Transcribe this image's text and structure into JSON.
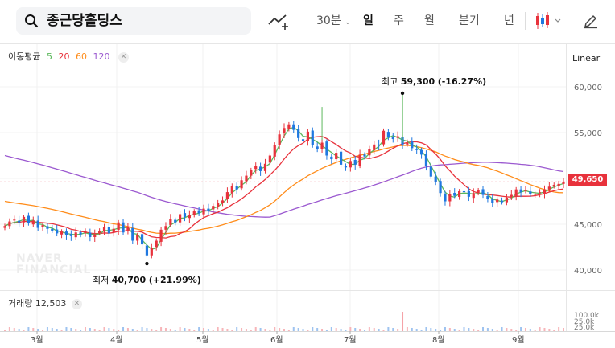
{
  "header": {
    "stock_name": "종근당홀딩스",
    "interval": "30분",
    "periods": [
      "일",
      "주",
      "월",
      "분기",
      "년"
    ],
    "active_period": "일"
  },
  "legend": {
    "title": "이동평균",
    "ma": [
      {
        "label": "5",
        "color": "#5cb85c"
      },
      {
        "label": "20",
        "color": "#e8323c"
      },
      {
        "label": "60",
        "color": "#ff8c1a"
      },
      {
        "label": "120",
        "color": "#9b59d0"
      }
    ]
  },
  "scale_label": "Linear",
  "volume_legend": {
    "title": "거래량",
    "value": "12,503"
  },
  "watermark": [
    "NAVER",
    "FINANCIAL"
  ],
  "annotations": {
    "high": {
      "label": "최고",
      "value": "59,300",
      "change": "(-16.27%)"
    },
    "low": {
      "label": "최저",
      "value": "40,700",
      "change": "(+21.99%)"
    }
  },
  "current_price": "49,650",
  "colors": {
    "up": "#e8323c",
    "down": "#1f78e0"
  },
  "chart_data": {
    "type": "candlestick",
    "y_ticks": [
      "60,000",
      "55,000",
      "50,000",
      "45,000",
      "40,000"
    ],
    "y_tick_values": [
      60000,
      55000,
      50000,
      45000,
      40000
    ],
    "ylim": [
      38000,
      62000
    ],
    "x_ticks": [
      "3월",
      "4월",
      "5월",
      "6월",
      "7월",
      "8월",
      "9월"
    ],
    "volume_ticks": [
      "100.0k",
      "25.0k",
      "25.0k"
    ],
    "closes": [
      44800,
      45300,
      45500,
      45200,
      45800,
      45100,
      45400,
      44600,
      44900,
      44500,
      44300,
      44000,
      44200,
      43800,
      43700,
      44100,
      43900,
      44200,
      43600,
      43900,
      44300,
      44700,
      44000,
      44500,
      45200,
      44100,
      44700,
      43200,
      43800,
      42800,
      41600,
      42400,
      43200,
      44400,
      44800,
      45600,
      45200,
      46100,
      45800,
      46000,
      46400,
      46200,
      46700,
      46500,
      47000,
      47300,
      47600,
      48500,
      49200,
      48800,
      49800,
      50300,
      50900,
      51400,
      50800,
      51600,
      52500,
      53600,
      54800,
      55500,
      55900,
      55300,
      54400,
      54100,
      55100,
      53600,
      53200,
      53900,
      52500,
      52100,
      52800,
      51500,
      51200,
      51900,
      51500,
      52600,
      52400,
      53200,
      53700,
      53600,
      55200,
      54500,
      54300,
      54600,
      53700,
      53900,
      53300,
      53100,
      52600,
      51400,
      50200,
      49600,
      48400,
      47500,
      48300,
      48100,
      48600,
      48500,
      48000,
      48400,
      48700,
      48200,
      47800,
      47300,
      47700,
      47400,
      47900,
      48200,
      48800,
      48500,
      48700,
      48300,
      48300,
      48500,
      48800,
      49100,
      49300,
      49400,
      49650
    ],
    "volume_spike_index": 84
  }
}
